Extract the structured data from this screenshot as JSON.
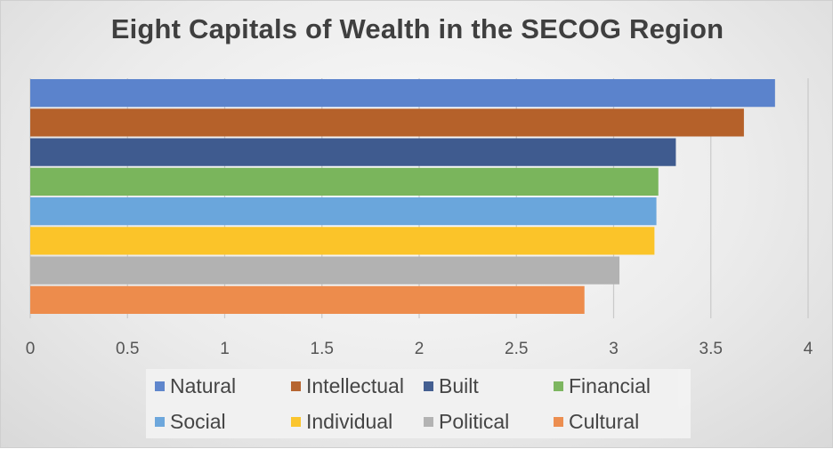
{
  "chart_data": {
    "type": "bar",
    "orientation": "horizontal",
    "title": "Eight Capitals of Wealth in the SECOG Region",
    "xlabel": "",
    "ylabel": "",
    "xlim": [
      0,
      4
    ],
    "x_ticks": [
      "0",
      "0.5",
      "1",
      "1.5",
      "2",
      "2.5",
      "3",
      "3.5",
      "4"
    ],
    "grid": "vertical",
    "legend_position": "bottom",
    "series": [
      {
        "name": "Natural",
        "value": 3.83,
        "color": "#5b83cc"
      },
      {
        "name": "Intellectual",
        "value": 3.67,
        "color": "#b5612a"
      },
      {
        "name": "Built",
        "value": 3.32,
        "color": "#3f5b8f"
      },
      {
        "name": "Financial",
        "value": 3.23,
        "color": "#7ab55c"
      },
      {
        "name": "Social",
        "value": 3.22,
        "color": "#6aa6dc"
      },
      {
        "name": "Individual",
        "value": 3.21,
        "color": "#fbc429"
      },
      {
        "name": "Political",
        "value": 3.03,
        "color": "#b2b2b2"
      },
      {
        "name": "Cultural",
        "value": 2.85,
        "color": "#ed8c4c"
      }
    ]
  }
}
